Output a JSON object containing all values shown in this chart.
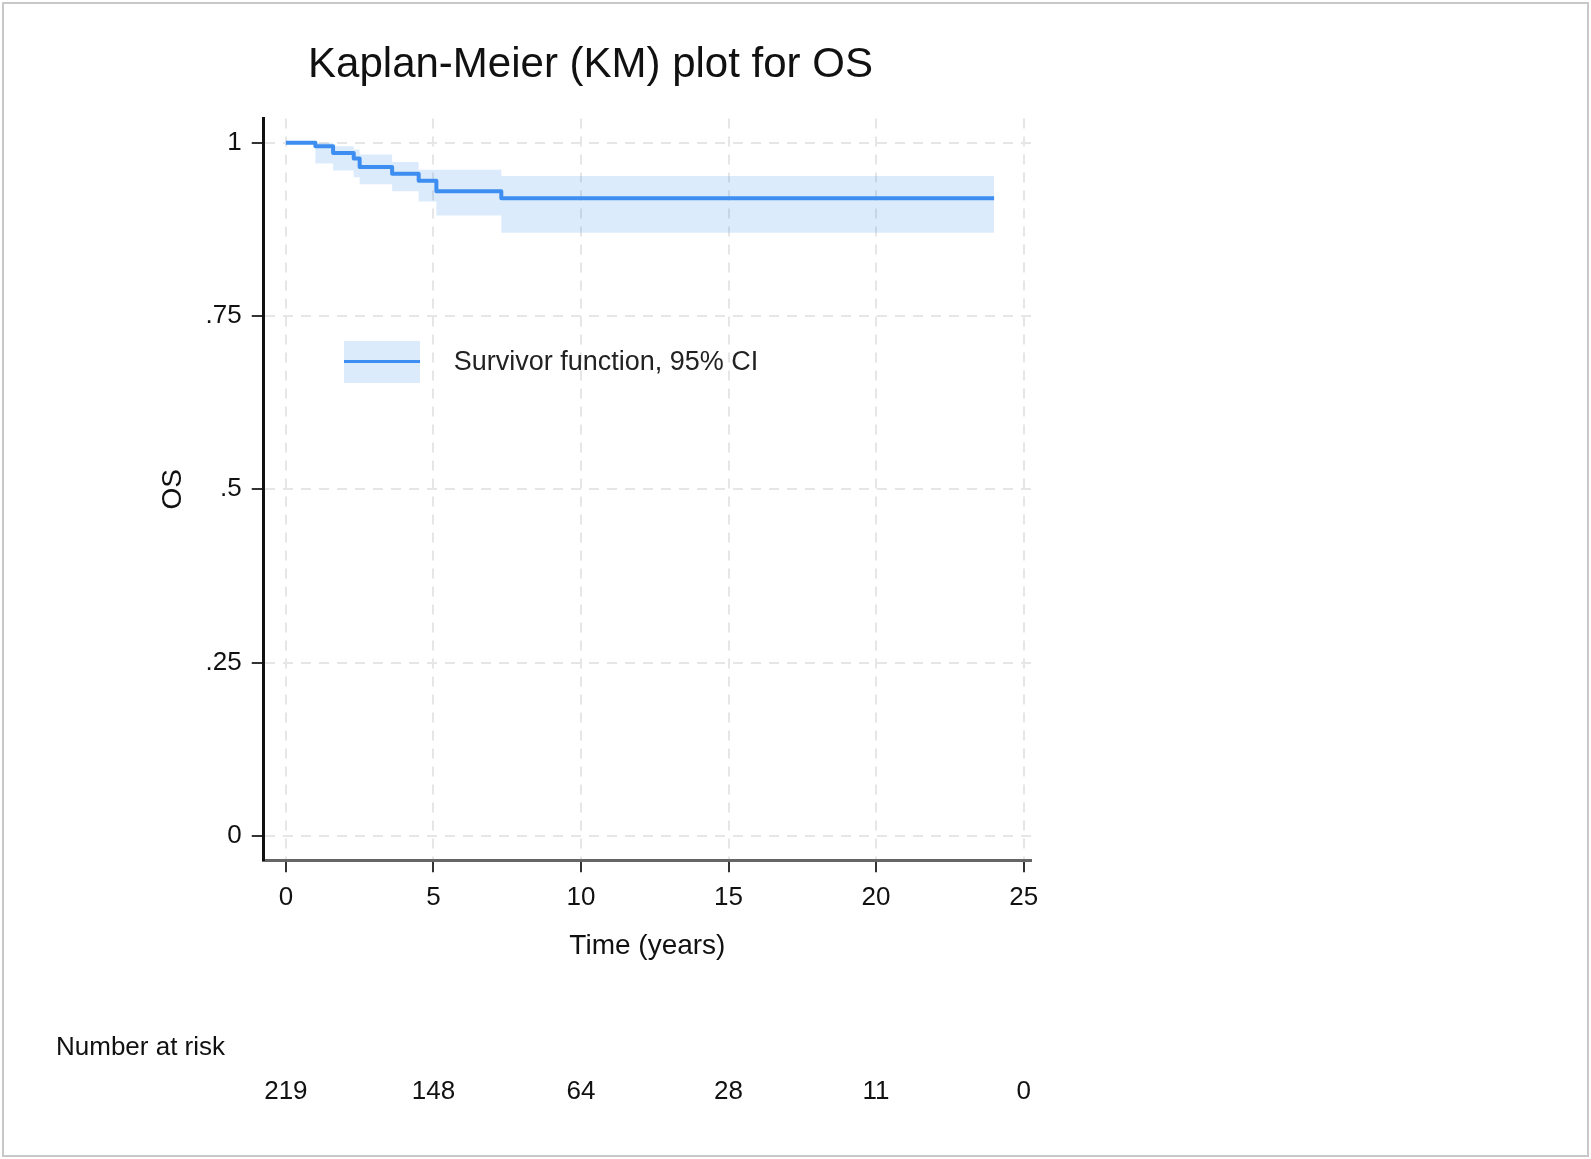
{
  "chart_data": {
    "type": "step",
    "title": "Kaplan-Meier (KM) plot for OS",
    "xlabel": "Time (years)",
    "ylabel": "OS",
    "x": [
      0,
      1.0,
      1.6,
      2.3,
      2.5,
      3.6,
      4.5,
      5.1,
      7.3,
      24
    ],
    "series": [
      {
        "name": "Survivor function, 95% CI",
        "color": "#3d8ef0",
        "values": [
          1,
          0.995,
          0.985,
          0.977,
          0.965,
          0.955,
          0.945,
          0.93,
          0.92,
          0.92
        ],
        "upper": [
          1,
          1,
          0.995,
          0.99,
          0.983,
          0.972,
          0.961,
          0.961,
          0.952,
          0.952
        ],
        "lower": [
          1,
          0.97,
          0.96,
          0.95,
          0.94,
          0.93,
          0.915,
          0.895,
          0.87,
          0.87
        ]
      }
    ],
    "xlim": [
      -0.75,
      25.25
    ],
    "xticks": [
      0,
      5,
      10,
      15,
      20,
      25
    ],
    "ylim": [
      -0.035,
      1.035
    ],
    "yticks": [
      0,
      {
        "value": 0.25,
        "label": ".25"
      },
      {
        "value": 0.5,
        "label": ".5"
      },
      {
        "value": 0.75,
        "label": ".75"
      },
      1
    ],
    "grid": true,
    "legend": "top left",
    "line_style": "solid",
    "marker": "none",
    "annotations": [
      "Number at risk",
      "219",
      "148",
      "64",
      "28",
      "11",
      "0"
    ]
  }
}
